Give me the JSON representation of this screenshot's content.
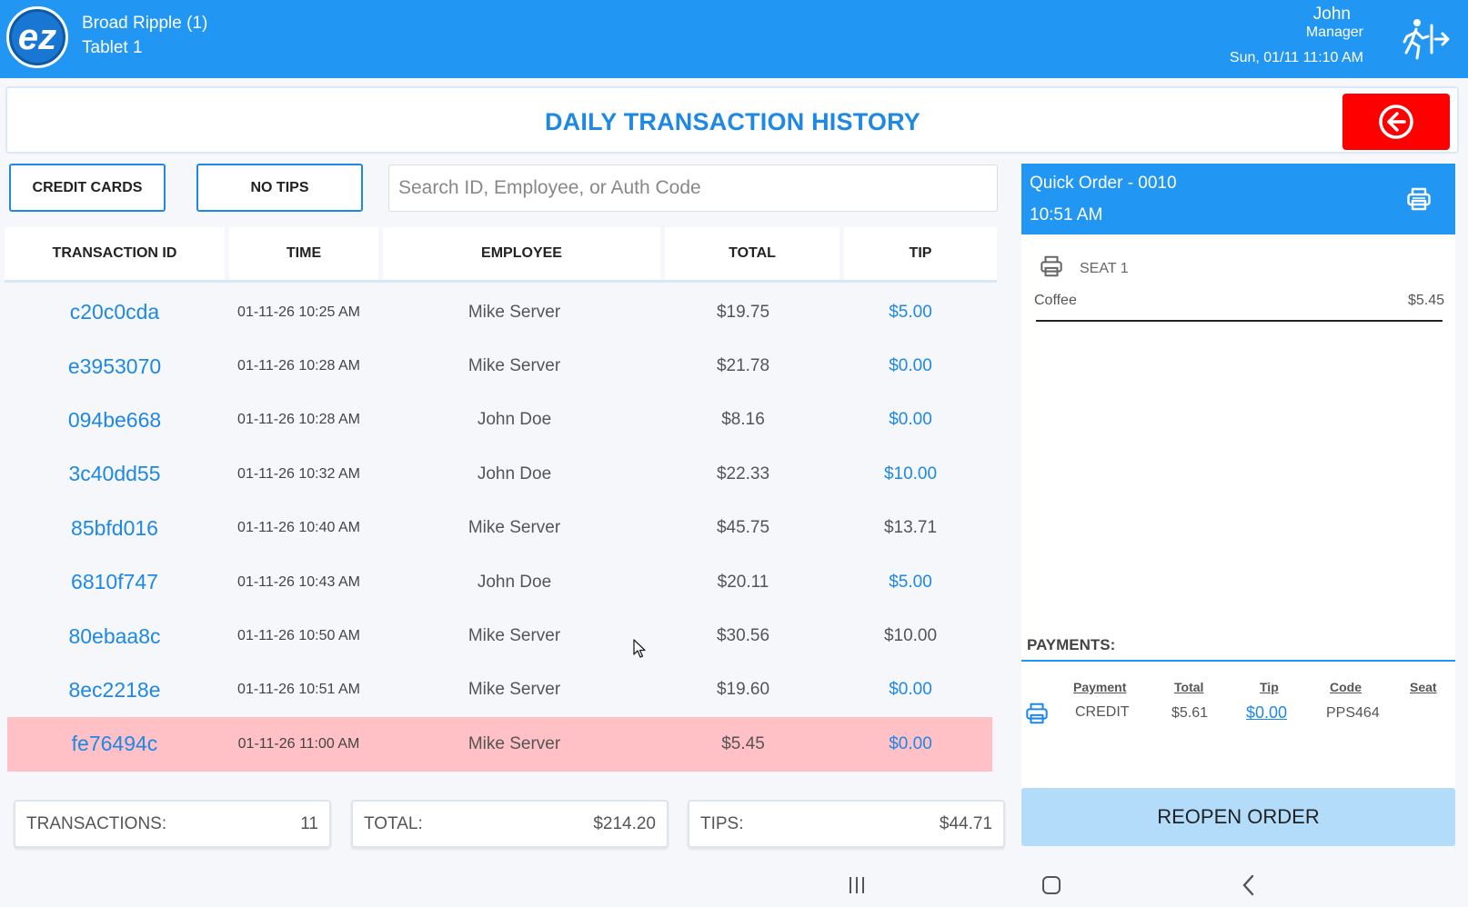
{
  "header": {
    "logo_text": "ez",
    "store_name": "Broad Ripple (1)",
    "device": "Tablet 1",
    "user_name": "John",
    "user_role": "Manager",
    "datetime": "Sun, 01/11 11:10 AM",
    "logout_icon": "exit-running-man-icon"
  },
  "page": {
    "title": "DAILY TRANSACTION HISTORY",
    "back_icon": "arrow-left-circle-icon"
  },
  "filters": {
    "credit_cards": "CREDIT CARDS",
    "no_tips": "NO TIPS",
    "search_placeholder": "Search ID, Employee, or Auth Code"
  },
  "table": {
    "columns": [
      "TRANSACTION ID",
      "TIME",
      "EMPLOYEE",
      "TOTAL",
      "TIP"
    ],
    "rows": [
      {
        "id": "c20c0cda",
        "time": "01-11-26 10:25 AM",
        "employee": "Mike Server",
        "total": "$19.75",
        "tip": "$5.00",
        "tip_color": "#1e88e5",
        "selected": false
      },
      {
        "id": "e3953070",
        "time": "01-11-26 10:28 AM",
        "employee": "Mike Server",
        "total": "$21.78",
        "tip": "$0.00",
        "tip_color": "#1e88e5",
        "selected": false
      },
      {
        "id": "094be668",
        "time": "01-11-26 10:28 AM",
        "employee": "John Doe",
        "total": "$8.16",
        "tip": "$0.00",
        "tip_color": "#1e88e5",
        "selected": false
      },
      {
        "id": "3c40dd55",
        "time": "01-11-26 10:32 AM",
        "employee": "John Doe",
        "total": "$22.33",
        "tip": "$10.00",
        "tip_color": "#1e88e5",
        "selected": false
      },
      {
        "id": "85bfd016",
        "time": "01-11-26 10:40 AM",
        "employee": "Mike Server",
        "total": "$45.75",
        "tip": "$13.71",
        "tip_color": "#555555",
        "selected": false
      },
      {
        "id": "6810f747",
        "time": "01-11-26 10:43 AM",
        "employee": "John Doe",
        "total": "$20.11",
        "tip": "$5.00",
        "tip_color": "#1e88e5",
        "selected": false
      },
      {
        "id": "80ebaa8c",
        "time": "01-11-26 10:50 AM",
        "employee": "Mike Server",
        "total": "$30.56",
        "tip": "$10.00",
        "tip_color": "#555555",
        "selected": false
      },
      {
        "id": "8ec2218e",
        "time": "01-11-26 10:51 AM",
        "employee": "Mike Server",
        "total": "$19.60",
        "tip": "$0.00",
        "tip_color": "#1e88e5",
        "selected": false
      },
      {
        "id": "fe76494c",
        "time": "01-11-26 11:00 AM",
        "employee": "Mike Server",
        "total": "$5.45",
        "tip": "$0.00",
        "tip_color": "#1e88e5",
        "selected": true
      }
    ]
  },
  "totals": {
    "transactions_label": "TRANSACTIONS:",
    "transactions_value": "11",
    "total_label": "TOTAL:",
    "total_value": "$214.20",
    "tips_label": "TIPS:",
    "tips_value": "$44.71"
  },
  "order": {
    "title": "Quick Order - 0010",
    "time": "10:51 AM",
    "seat_label": "SEAT 1",
    "item_name": "Coffee",
    "item_price": "$5.45",
    "payments_label": "PAYMENTS:",
    "payment_headers": {
      "payment": "Payment",
      "total": "Total",
      "tip": "Tip",
      "code": "Code",
      "seat": "Seat"
    },
    "payment_row": {
      "payment": "CREDIT",
      "total": "$5.61",
      "tip": "$0.00",
      "code": "PPS464",
      "seat": ""
    },
    "reopen_label": "REOPEN ORDER"
  },
  "colors": {
    "brand_blue": "#2196f3",
    "link_blue": "#1e88e5",
    "back_red": "#ff0000",
    "selected_row": "#ffc0c6",
    "reopen_bg": "#b3dcfb"
  }
}
